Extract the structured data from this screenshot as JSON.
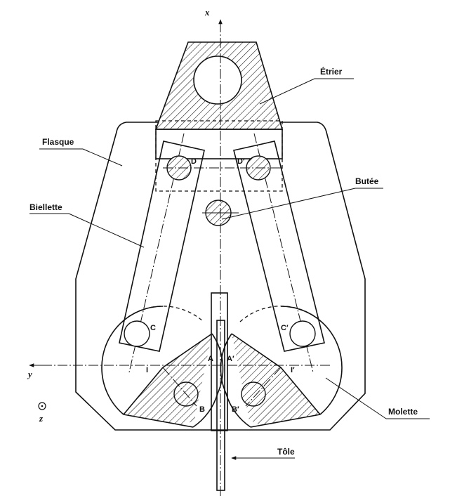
{
  "labels": {
    "etrier": "Étrier",
    "flasque": "Flasque",
    "butee": "Butée",
    "biellette": "Biellette",
    "molette": "Molette",
    "tole": "Tôle"
  },
  "points": {
    "D": "D",
    "D_prime": "D′",
    "C": "C",
    "C_prime": "C′",
    "A": "A",
    "A_prime": "A′",
    "I": "I",
    "I_prime": "I′",
    "B": "B",
    "B_prime": "B′"
  },
  "axes": {
    "x": "x",
    "y": "y",
    "z": "z"
  }
}
